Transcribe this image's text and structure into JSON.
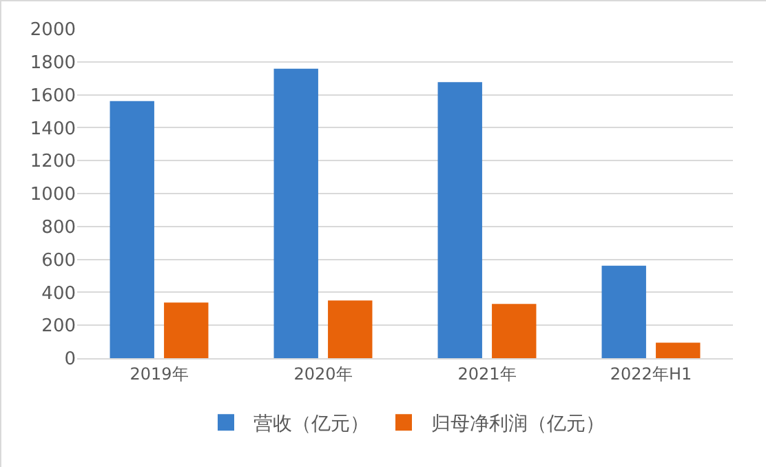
{
  "chart_data": {
    "type": "bar",
    "categories": [
      "2019年",
      "2020年",
      "2021年",
      "2022年H1"
    ],
    "series": [
      {
        "name": "营收（亿元）",
        "color": "#3a7fcb",
        "values": [
          1562,
          1758,
          1677,
          562
        ]
      },
      {
        "name": "归母净利润（亿元）",
        "color": "#e8630a",
        "values": [
          338,
          350,
          329,
          94
        ]
      }
    ],
    "ylim": [
      0,
      2000
    ],
    "yticks": [
      0,
      200,
      400,
      600,
      800,
      1000,
      1200,
      1400,
      1600,
      1800,
      2000
    ],
    "grid": "y",
    "legend": "bottom"
  }
}
